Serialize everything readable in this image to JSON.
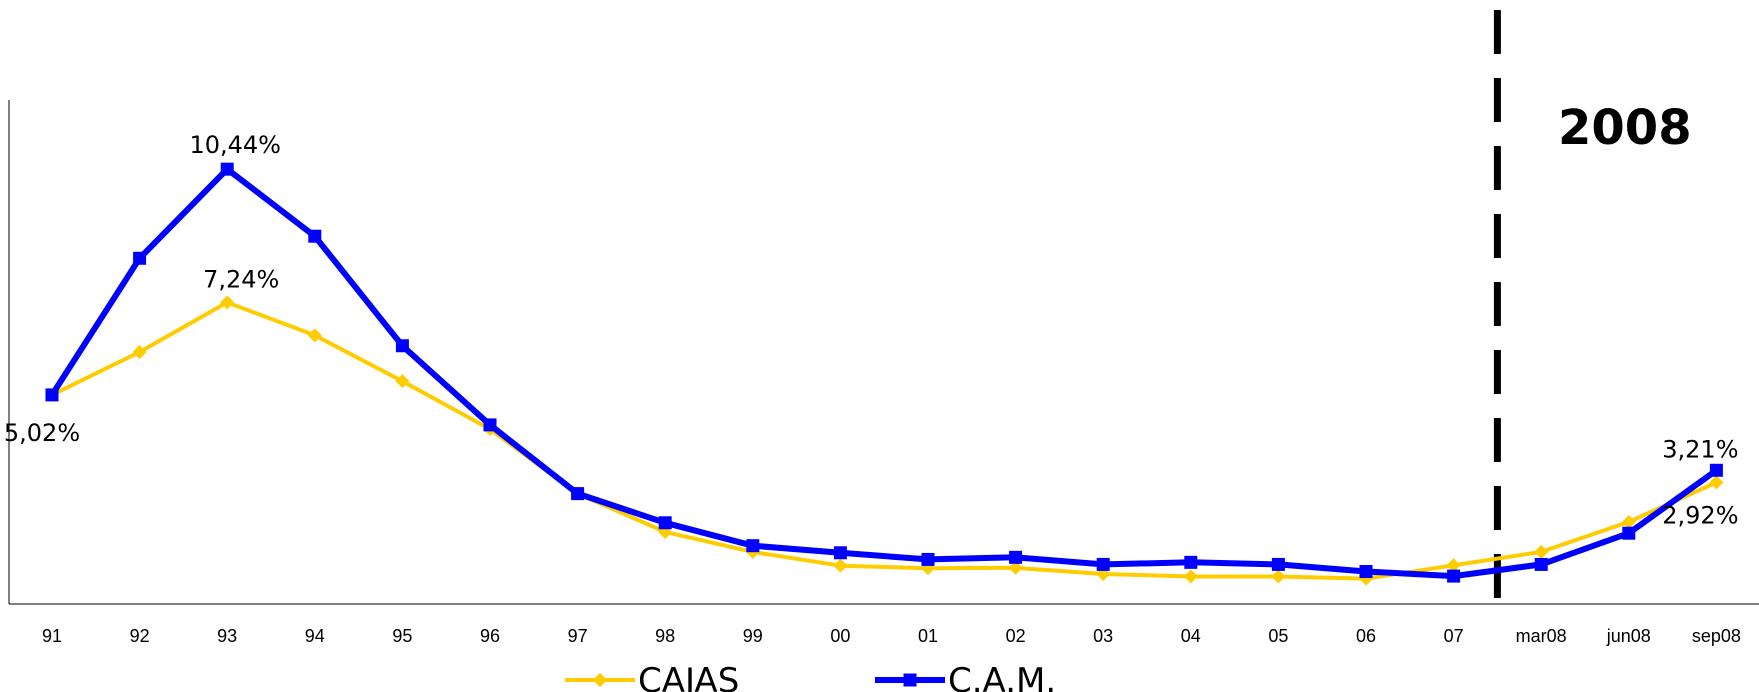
{
  "chart_data": {
    "type": "line",
    "categories": [
      "91",
      "92",
      "93",
      "94",
      "95",
      "96",
      "97",
      "98",
      "99",
      "00",
      "01",
      "02",
      "03",
      "04",
      "05",
      "06",
      "07",
      "mar08",
      "jun08",
      "sep08"
    ],
    "series": [
      {
        "name": "CAJAS",
        "color": "#FFCC00",
        "marker": "diamond",
        "values": [
          5.02,
          6.05,
          7.24,
          6.45,
          5.35,
          4.2,
          2.65,
          1.73,
          1.25,
          0.92,
          0.86,
          0.87,
          0.72,
          0.66,
          0.66,
          0.61,
          0.93,
          1.25,
          1.97,
          2.92
        ]
      },
      {
        "name": "C.A.M.",
        "color": "#0000FF",
        "marker": "square",
        "values": [
          5.02,
          8.3,
          10.44,
          8.83,
          6.2,
          4.3,
          2.65,
          1.95,
          1.4,
          1.23,
          1.07,
          1.12,
          0.95,
          1.0,
          0.95,
          0.78,
          0.67,
          0.95,
          1.7,
          3.21
        ]
      }
    ],
    "ylim": [
      0,
      12.1
    ],
    "grid": false,
    "legend": "bottom",
    "data_labels": [
      {
        "series": 1,
        "index": 2,
        "text": "10,44%"
      },
      {
        "series": 0,
        "index": 2,
        "text": "7,24%"
      },
      {
        "series": 0,
        "index": 0,
        "text": "5,02%"
      },
      {
        "series": 1,
        "index": 19,
        "text": "3,21%"
      },
      {
        "series": 0,
        "index": 19,
        "text": "2,92%"
      }
    ],
    "divider_after_category": "07",
    "annotation": "2008"
  }
}
